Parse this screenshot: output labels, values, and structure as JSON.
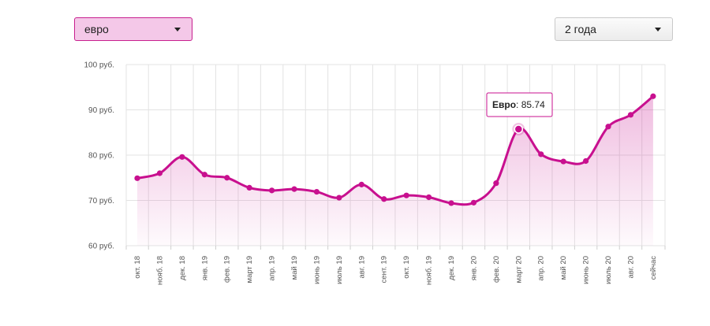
{
  "controls": {
    "currency_select": {
      "value": "евро",
      "icon": "chevron-down-icon"
    },
    "period_select": {
      "value": "2 года",
      "icon": "chevron-down-icon"
    }
  },
  "colors": {
    "accent": "#c8108f",
    "accent_light": "#f4c8e8",
    "grid": "#e3e3e3"
  },
  "chart_data": {
    "type": "area",
    "series": [
      {
        "name": "Евро",
        "values": [
          74.9,
          76.0,
          79.6,
          75.7,
          75.0,
          72.8,
          72.2,
          72.5,
          71.9,
          70.6,
          73.5,
          70.3,
          71.1,
          70.7,
          69.4,
          69.5,
          73.8,
          85.74,
          80.2,
          78.6,
          78.7,
          86.3,
          88.9,
          93.0
        ]
      }
    ],
    "categories": [
      "окт. 18",
      "нояб. 18",
      "дек. 18",
      "янв. 19",
      "фев. 19",
      "март 19",
      "апр. 19",
      "май 19",
      "июнь 19",
      "июль 19",
      "авг. 19",
      "сент. 19",
      "окт. 19",
      "нояб. 19",
      "дек. 19",
      "янв. 20",
      "фев. 20",
      "март 20",
      "апр. 20",
      "май 20",
      "июнь 20",
      "июль 20",
      "авг. 20",
      "сейчас"
    ],
    "y_ticks": [
      "60 руб.",
      "70 руб.",
      "80 руб.",
      "90 руб.",
      "100 руб."
    ],
    "ylim": [
      60,
      100
    ],
    "grid": true,
    "tooltip": {
      "series": "Евро",
      "value": "85.74",
      "category_index": 17
    }
  }
}
